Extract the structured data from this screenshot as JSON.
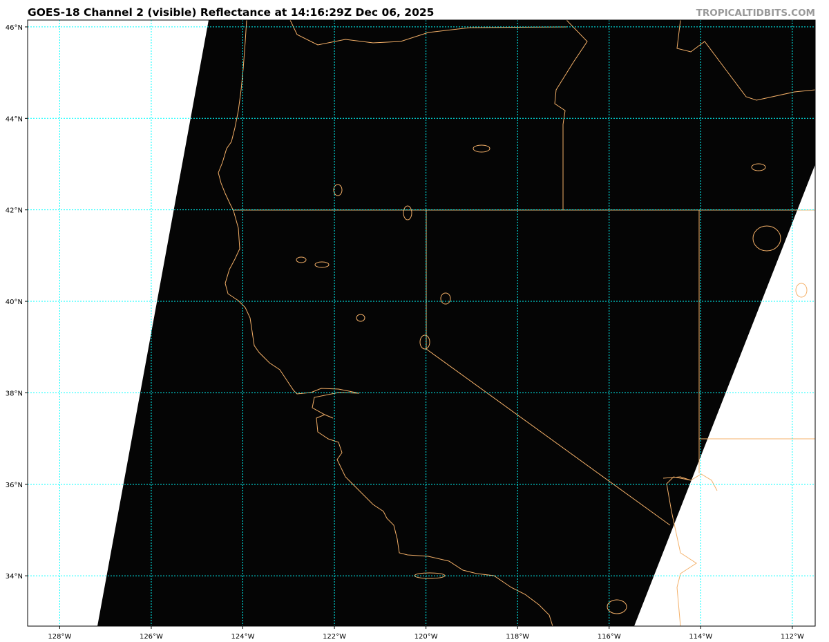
{
  "title": "GOES-18 Channel 2 (visible) Reflectance at 14:16:29Z Dec 06, 2025",
  "watermark": "TROPICALTIDBITS.COM",
  "map": {
    "extent": {
      "lon": [
        -128.7,
        -111.5
      ],
      "lat": [
        32.9,
        46.15
      ]
    },
    "lon_ticks": [
      "128°W",
      "126°W",
      "124°W",
      "122°W",
      "120°W",
      "118°W",
      "116°W",
      "114°W",
      "112°W"
    ],
    "lat_ticks": [
      "46°N",
      "44°N",
      "42°N",
      "40°N",
      "38°N",
      "36°N",
      "34°N"
    ],
    "lon_values": [
      -128,
      -126,
      -124,
      -122,
      -120,
      -118,
      -116,
      -114,
      -112
    ],
    "lat_values": [
      46,
      44,
      42,
      40,
      38,
      36,
      34
    ],
    "colors": {
      "imagery": "#050505",
      "no_data": "#ffffff",
      "coastline": "#f4b068",
      "gridlines": "#00ffff"
    },
    "gridlines": "dotted"
  }
}
